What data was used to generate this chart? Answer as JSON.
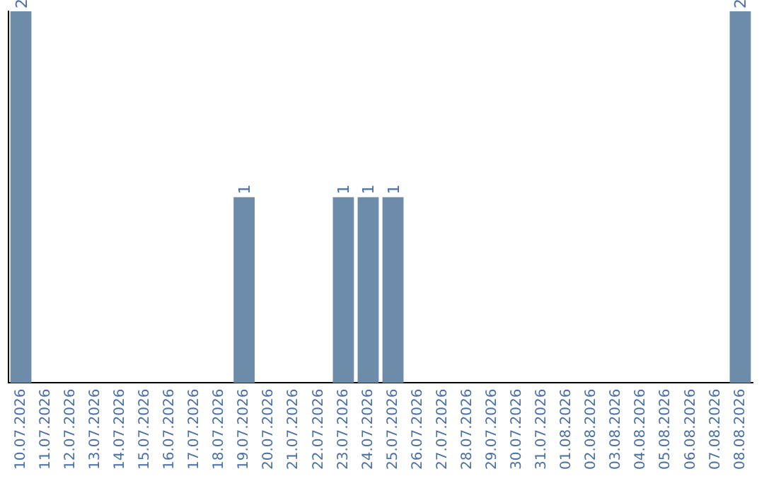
{
  "chart_data": {
    "type": "bar",
    "categories": [
      "10.07.2026",
      "11.07.2026",
      "12.07.2026",
      "13.07.2026",
      "14.07.2026",
      "15.07.2026",
      "16.07.2026",
      "17.07.2026",
      "18.07.2026",
      "19.07.2026",
      "20.07.2026",
      "21.07.2026",
      "22.07.2026",
      "23.07.2026",
      "24.07.2026",
      "25.07.2026",
      "26.07.2026",
      "27.07.2026",
      "28.07.2026",
      "29.07.2026",
      "30.07.2026",
      "31.07.2026",
      "01.08.2026",
      "02.08.2026",
      "03.08.2026",
      "04.08.2026",
      "05.08.2026",
      "06.08.2026",
      "07.08.2026",
      "08.08.2026"
    ],
    "values": [
      2,
      0,
      0,
      0,
      0,
      0,
      0,
      0,
      0,
      1,
      0,
      0,
      0,
      1,
      1,
      1,
      0,
      0,
      0,
      0,
      0,
      0,
      0,
      0,
      0,
      0,
      0,
      0,
      0,
      2
    ],
    "value_labels": [
      "2",
      null,
      null,
      null,
      null,
      null,
      null,
      null,
      null,
      "1",
      null,
      null,
      null,
      "1",
      "1",
      "1",
      null,
      null,
      null,
      null,
      null,
      null,
      null,
      null,
      null,
      null,
      null,
      null,
      null,
      "2"
    ],
    "color": "#6c8caa",
    "ylim": [
      0,
      2
    ],
    "tick_labels": "x",
    "grid": false,
    "legend": false
  }
}
